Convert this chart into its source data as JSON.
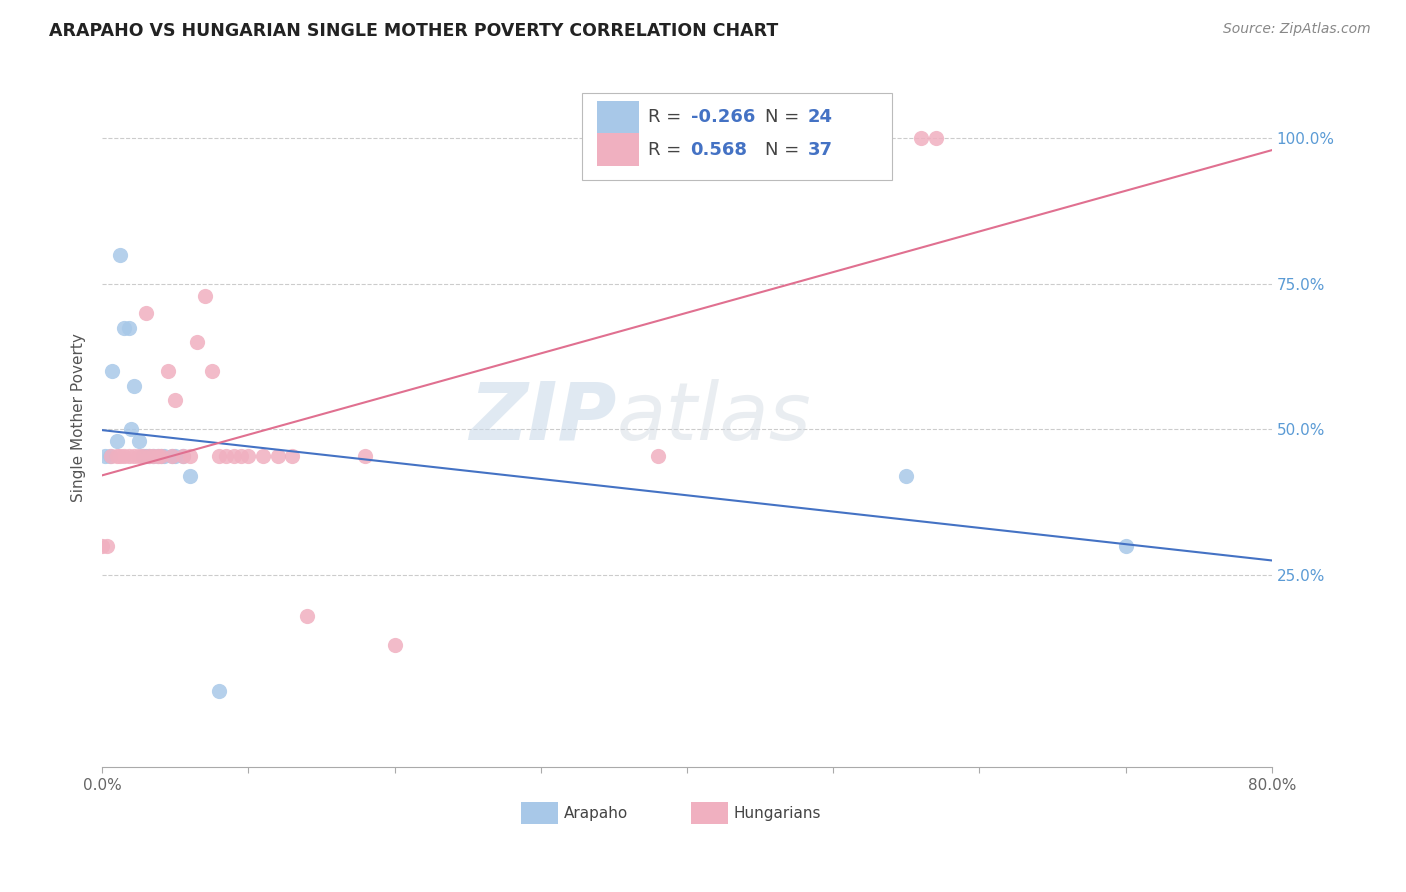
{
  "title": "ARAPAHO VS HUNGARIAN SINGLE MOTHER POVERTY CORRELATION CHART",
  "source": "Source: ZipAtlas.com",
  "ylabel": "Single Mother Poverty",
  "arapaho_color": "#A8C8E8",
  "hungarian_color": "#F0B0C0",
  "arapaho_line_color": "#4472C4",
  "hungarian_line_color": "#E07090",
  "legend_R_arapaho": "-0.266",
  "legend_N_arapaho": "24",
  "legend_R_hungarian": "0.568",
  "legend_N_hungarian": "37",
  "watermark_zip": "ZIP",
  "watermark_atlas": "atlas",
  "arapaho_x": [
    0.002,
    0.005,
    0.007,
    0.01,
    0.012,
    0.015,
    0.018,
    0.02,
    0.022,
    0.025,
    0.028,
    0.03,
    0.032,
    0.035,
    0.038,
    0.04,
    0.042,
    0.048,
    0.05,
    0.055,
    0.06,
    0.08,
    0.55,
    0.7
  ],
  "arapaho_y": [
    0.455,
    0.455,
    0.6,
    0.48,
    0.8,
    0.675,
    0.675,
    0.5,
    0.575,
    0.48,
    0.455,
    0.455,
    0.455,
    0.455,
    0.455,
    0.455,
    0.455,
    0.455,
    0.455,
    0.455,
    0.42,
    0.05,
    0.42,
    0.3
  ],
  "hungarian_x": [
    0.0,
    0.003,
    0.006,
    0.01,
    0.012,
    0.015,
    0.018,
    0.022,
    0.025,
    0.028,
    0.03,
    0.032,
    0.035,
    0.038,
    0.04,
    0.045,
    0.048,
    0.05,
    0.055,
    0.06,
    0.065,
    0.07,
    0.075,
    0.08,
    0.085,
    0.09,
    0.095,
    0.1,
    0.11,
    0.12,
    0.13,
    0.14,
    0.18,
    0.2,
    0.38,
    0.56,
    0.57
  ],
  "hungarian_y": [
    0.3,
    0.3,
    0.455,
    0.455,
    0.455,
    0.455,
    0.455,
    0.455,
    0.455,
    0.455,
    0.7,
    0.455,
    0.455,
    0.455,
    0.455,
    0.6,
    0.455,
    0.55,
    0.455,
    0.455,
    0.65,
    0.73,
    0.6,
    0.455,
    0.455,
    0.455,
    0.455,
    0.455,
    0.455,
    0.455,
    0.455,
    0.18,
    0.455,
    0.13,
    0.455,
    1.0,
    1.0
  ],
  "xmin": 0.0,
  "xmax": 0.8,
  "ymin": -0.08,
  "ymax": 1.12,
  "y_tick_positions": [
    0.25,
    0.5,
    0.75,
    1.0
  ],
  "y_tick_labels": [
    "25.0%",
    "50.0%",
    "75.0%",
    "100.0%"
  ],
  "x_tick_positions": [
    0.0,
    0.1,
    0.2,
    0.3,
    0.4,
    0.5,
    0.6,
    0.7,
    0.8
  ],
  "x_tick_labels": [
    "0.0%",
    "",
    "",
    "",
    "",
    "",
    "",
    "",
    "80.0%"
  ],
  "background_color": "#FFFFFF"
}
